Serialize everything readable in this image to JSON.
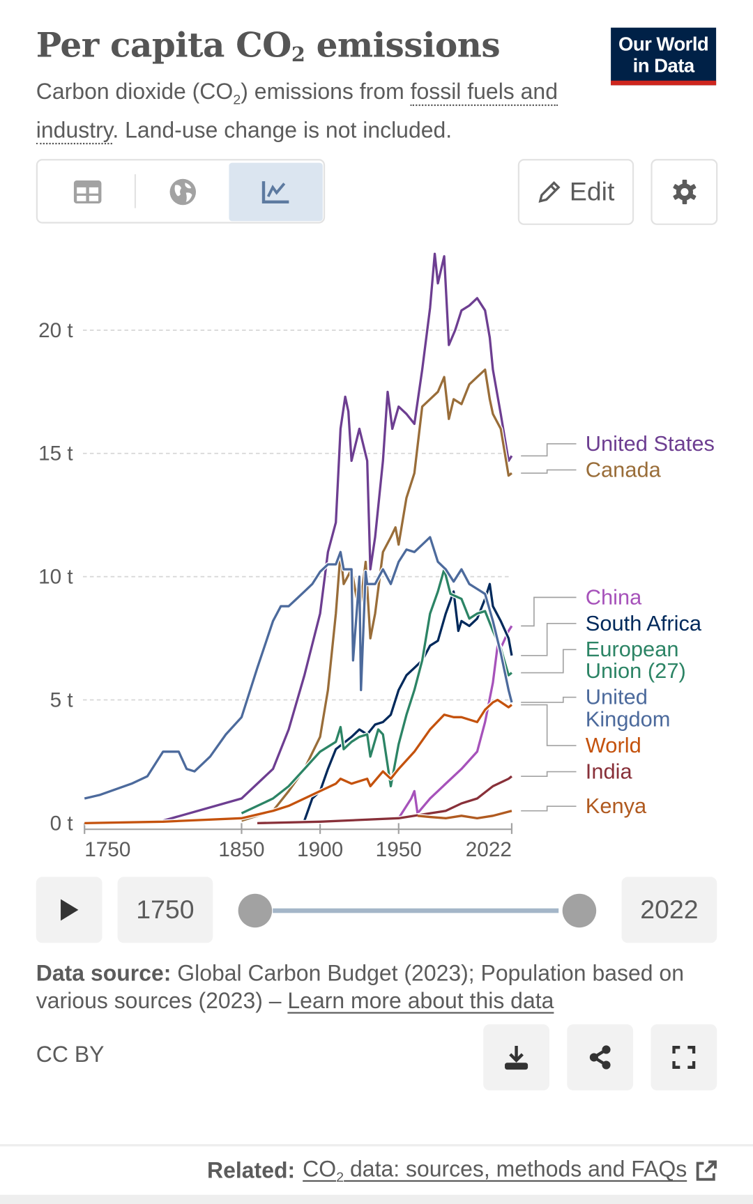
{
  "header": {
    "title_pre": "Per capita CO",
    "title_sub": "2",
    "title_post": " emissions",
    "subtitle_pre": "Carbon dioxide (CO",
    "subtitle_sub": "2",
    "subtitle_mid": ") emissions from ",
    "subtitle_link": "fossil fuels and industry",
    "subtitle_post": ". Land-use change is not included.",
    "logo_line1": "Our World",
    "logo_line2": "in Data"
  },
  "toolbar": {
    "tabs": [
      {
        "icon": "table-icon",
        "active": false
      },
      {
        "icon": "globe-icon",
        "active": false
      },
      {
        "icon": "line-chart-icon",
        "active": true
      }
    ],
    "edit_label": "Edit",
    "settings_icon": "gear-icon"
  },
  "timeline": {
    "start_label": "1750",
    "end_label": "2022",
    "start_year": 1750,
    "end_year": 2022
  },
  "source": {
    "label": "Data source:",
    "text": " Global Carbon Budget (2023); Population based on various sources (2023) – ",
    "link": "Learn more about this data"
  },
  "license": "CC BY",
  "actions": [
    "download-icon",
    "share-icon",
    "fullscreen-icon"
  ],
  "footer": {
    "label": "Related:",
    "link_pre": "CO",
    "link_sub": "2",
    "link_post": " data: sources, methods and FAQs"
  },
  "chart_data": {
    "type": "line",
    "title": "Per capita CO₂ emissions",
    "xlim": [
      1750,
      2022
    ],
    "ylim": [
      0,
      23
    ],
    "x_ticks": [
      "1750",
      "1850",
      "1900",
      "1950",
      "2022"
    ],
    "y_ticks": [
      "0 t",
      "5 t",
      "10 t",
      "15 t",
      "20 t"
    ],
    "y_tick_values": [
      0,
      5,
      10,
      15,
      20
    ],
    "x_tick_values": [
      1750,
      1850,
      1900,
      1950,
      2022
    ],
    "grid": "horizontal dashed",
    "legend": "right (line-end labels)",
    "series": [
      {
        "name": "United States",
        "color": "#6d3e91",
        "x": [
          1800,
          1850,
          1870,
          1880,
          1890,
          1900,
          1905,
          1910,
          1913,
          1916,
          1918,
          1920,
          1925,
          1930,
          1932,
          1935,
          1940,
          1943,
          1946,
          1950,
          1955,
          1960,
          1965,
          1970,
          1973,
          1975,
          1979,
          1982,
          1986,
          1990,
          1995,
          2000,
          2005,
          2008,
          2010,
          2015,
          2020,
          2022
        ],
        "y": [
          0.1,
          1.0,
          2.2,
          3.8,
          6.0,
          8.5,
          11.0,
          12.2,
          16.0,
          17.3,
          16.7,
          14.7,
          16.0,
          14.7,
          10.3,
          11.6,
          14.7,
          17.5,
          16.0,
          16.9,
          16.6,
          16.2,
          18.4,
          20.9,
          23.1,
          21.9,
          23.0,
          19.4,
          20.0,
          20.8,
          21.0,
          21.3,
          20.8,
          19.7,
          18.4,
          16.6,
          14.7,
          14.9
        ]
      },
      {
        "name": "Canada",
        "color": "#996d39",
        "x": [
          1850,
          1870,
          1880,
          1890,
          1900,
          1905,
          1910,
          1913,
          1915,
          1920,
          1925,
          1929,
          1932,
          1935,
          1940,
          1945,
          1948,
          1950,
          1955,
          1960,
          1965,
          1970,
          1975,
          1979,
          1982,
          1985,
          1990,
          1995,
          2000,
          2005,
          2008,
          2010,
          2015,
          2020,
          2022
        ],
        "y": [
          0.1,
          0.5,
          1.3,
          2.2,
          3.5,
          5.4,
          8.5,
          11.0,
          9.7,
          10.3,
          8.5,
          10.6,
          7.5,
          8.5,
          11.0,
          11.6,
          12.0,
          11.3,
          13.2,
          14.2,
          16.9,
          17.2,
          17.5,
          18.1,
          16.4,
          17.2,
          17.0,
          17.8,
          18.1,
          18.4,
          17.2,
          16.6,
          16.0,
          14.1,
          14.2
        ]
      },
      {
        "name": "China",
        "color": "#a652ba",
        "x": [
          1900,
          1950,
          1958,
          1960,
          1962,
          1970,
          1975,
          1980,
          1990,
          2000,
          2005,
          2010,
          2013,
          2015,
          2020,
          2022
        ],
        "y": [
          0.05,
          0.2,
          1.0,
          1.3,
          0.4,
          1.0,
          1.3,
          1.6,
          2.2,
          2.9,
          4.1,
          5.7,
          7.2,
          7.1,
          7.8,
          8.0
        ]
      },
      {
        "name": "South Africa",
        "color": "#00295b",
        "x": [
          1890,
          1895,
          1900,
          1905,
          1910,
          1920,
          1925,
          1930,
          1935,
          1940,
          1945,
          1950,
          1955,
          1960,
          1965,
          1970,
          1975,
          1980,
          1985,
          1988,
          1990,
          1995,
          2000,
          2005,
          2008,
          2010,
          2015,
          2020,
          2022
        ],
        "y": [
          0.1,
          1.0,
          1.3,
          2.2,
          3.0,
          3.5,
          3.8,
          3.6,
          4.0,
          4.1,
          4.4,
          5.4,
          6.0,
          6.3,
          6.6,
          7.2,
          7.4,
          8.5,
          9.4,
          7.8,
          8.2,
          8.0,
          8.3,
          9.1,
          9.7,
          8.8,
          8.2,
          7.5,
          6.8
        ]
      },
      {
        "name": "European Union (27)",
        "color": "#2c8465",
        "x": [
          1850,
          1870,
          1880,
          1890,
          1900,
          1910,
          1913,
          1915,
          1920,
          1925,
          1930,
          1932,
          1937,
          1940,
          1945,
          1950,
          1955,
          1960,
          1965,
          1970,
          1975,
          1979,
          1983,
          1990,
          1995,
          2000,
          2005,
          2010,
          2015,
          2020,
          2022
        ],
        "y": [
          0.4,
          1.0,
          1.5,
          2.2,
          2.9,
          3.3,
          3.9,
          3.0,
          3.3,
          3.5,
          3.6,
          2.7,
          3.8,
          3.6,
          1.5,
          3.2,
          4.4,
          5.4,
          6.6,
          8.5,
          9.4,
          10.3,
          9.3,
          9.1,
          8.3,
          8.5,
          8.6,
          7.8,
          7.1,
          6.0,
          6.1
        ]
      },
      {
        "name": "United Kingdom",
        "color": "#4c6a9c",
        "x": [
          1750,
          1760,
          1780,
          1790,
          1800,
          1810,
          1815,
          1820,
          1825,
          1830,
          1840,
          1850,
          1860,
          1870,
          1875,
          1880,
          1885,
          1890,
          1895,
          1900,
          1905,
          1910,
          1913,
          1915,
          1920,
          1921,
          1925,
          1926,
          1929,
          1930,
          1935,
          1940,
          1945,
          1950,
          1955,
          1960,
          1965,
          1970,
          1975,
          1980,
          1985,
          1990,
          1995,
          2000,
          2005,
          2010,
          2015,
          2020,
          2022
        ],
        "y": [
          1.0,
          1.15,
          1.6,
          1.9,
          2.9,
          2.9,
          2.2,
          2.1,
          2.4,
          2.7,
          3.6,
          4.3,
          6.3,
          8.2,
          8.8,
          8.8,
          9.1,
          9.4,
          9.7,
          10.2,
          10.5,
          10.5,
          11.0,
          10.3,
          10.3,
          6.6,
          10.0,
          5.4,
          10.2,
          9.7,
          9.7,
          10.3,
          9.7,
          10.6,
          11.1,
          11.0,
          11.3,
          11.6,
          10.6,
          10.3,
          9.8,
          10.3,
          9.7,
          9.5,
          9.3,
          8.2,
          6.9,
          5.4,
          4.9
        ]
      },
      {
        "name": "World",
        "color": "#c4520d",
        "x": [
          1750,
          1800,
          1850,
          1870,
          1880,
          1890,
          1900,
          1910,
          1913,
          1920,
          1930,
          1932,
          1940,
          1945,
          1950,
          1960,
          1970,
          1979,
          1985,
          1990,
          2000,
          2005,
          2010,
          2013,
          2020,
          2022
        ],
        "y": [
          0.0,
          0.06,
          0.2,
          0.5,
          0.7,
          1.0,
          1.3,
          1.6,
          1.8,
          1.6,
          1.8,
          1.5,
          2.1,
          1.8,
          2.2,
          2.9,
          3.8,
          4.4,
          4.3,
          4.3,
          4.1,
          4.6,
          4.9,
          5.0,
          4.7,
          4.8
        ]
      },
      {
        "name": "India",
        "color": "#883039",
        "x": [
          1860,
          1900,
          1950,
          1970,
          1980,
          1990,
          2000,
          2010,
          2020,
          2022
        ],
        "y": [
          0.0,
          0.06,
          0.2,
          0.4,
          0.5,
          0.8,
          1.0,
          1.5,
          1.8,
          1.9
        ]
      },
      {
        "name": "Kenya",
        "color": "#b05a20",
        "x": [
          1962,
          1970,
          1980,
          1990,
          2000,
          2010,
          2022
        ],
        "y": [
          0.3,
          0.25,
          0.2,
          0.3,
          0.2,
          0.3,
          0.5
        ]
      }
    ]
  }
}
